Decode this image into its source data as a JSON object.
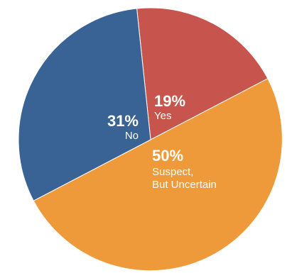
{
  "chart_data": {
    "type": "pie",
    "slices": [
      {
        "label": "Yes",
        "value": 19,
        "percent_label": "19%",
        "color": "#c8544e"
      },
      {
        "label": "Suspect, But Uncertain",
        "value": 50,
        "percent_label": "50%",
        "label_lines": [
          "Suspect,",
          "But Uncertain"
        ],
        "color": "#ef9a3a"
      },
      {
        "label": "No",
        "value": 31,
        "percent_label": "31%",
        "color": "#386394"
      }
    ]
  }
}
